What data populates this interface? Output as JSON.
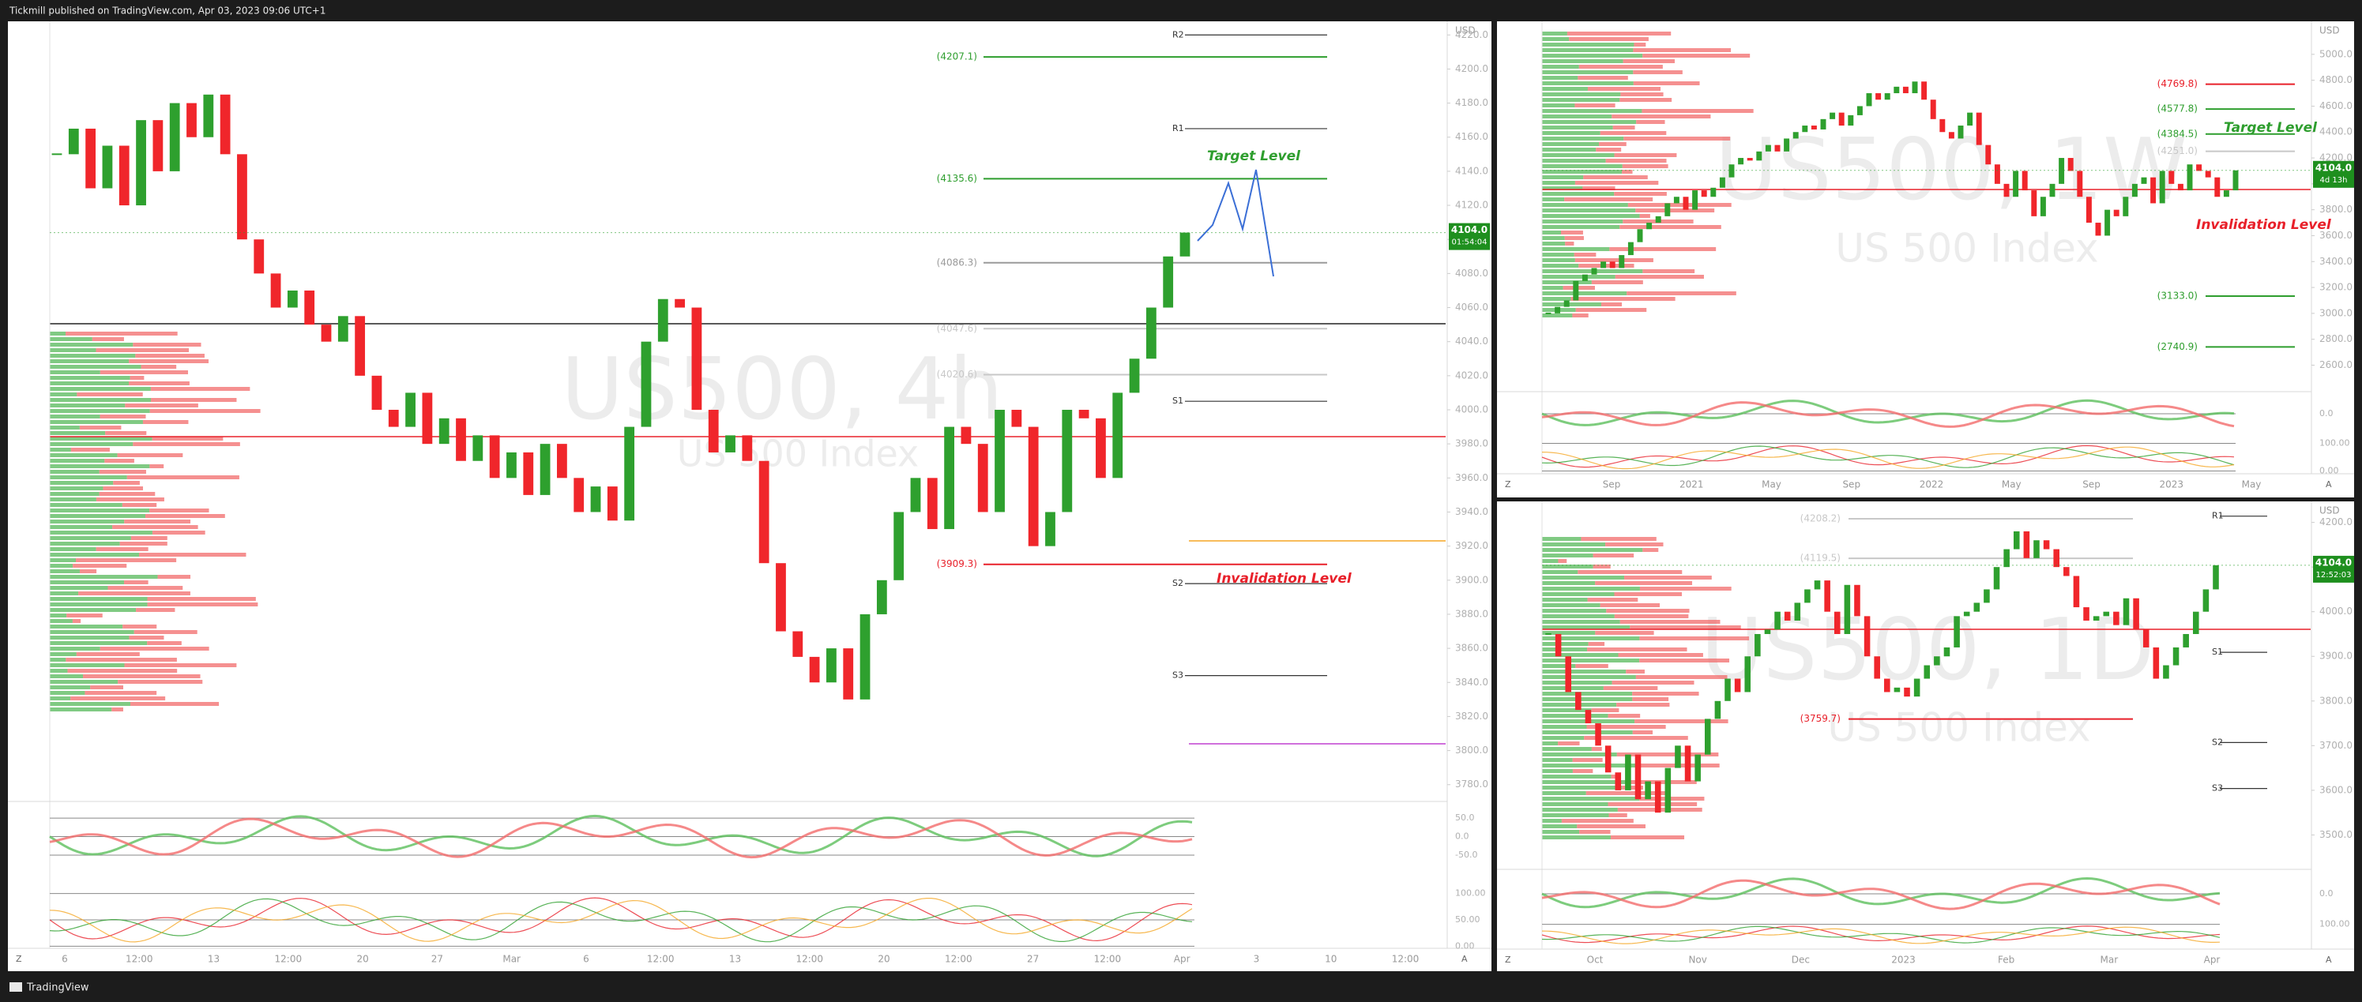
{
  "header": {
    "text": "Tickmill published on TradingView.com, Apr 03, 2023 09:06 UTC+1"
  },
  "footer": {
    "brand": "TradingView"
  },
  "panels": [
    {
      "watermark": "US500, 4h",
      "subtitle": "US 500 Index",
      "currency": "USD",
      "up_color": "#2ea02e",
      "down_color": "#f0262b",
      "ylim": [
        3772,
        4228
      ],
      "yticks": [
        {
          "value": 3780,
          "label": "3780.0"
        },
        {
          "value": 3800,
          "label": "3800.0"
        },
        {
          "value": 3820,
          "label": "3820.0"
        },
        {
          "value": 3840,
          "label": "3840.0"
        },
        {
          "value": 3860,
          "label": "3860.0"
        },
        {
          "value": 3880,
          "label": "3880.0"
        },
        {
          "value": 3900,
          "label": "3900.0"
        },
        {
          "value": 3920,
          "label": "3920.0"
        },
        {
          "value": 3940,
          "label": "3940.0"
        },
        {
          "value": 3960,
          "label": "3960.0"
        },
        {
          "value": 3980,
          "label": "3980.0"
        },
        {
          "value": 4000,
          "label": "4000.0"
        },
        {
          "value": 4020,
          "label": "4020.0"
        },
        {
          "value": 4040,
          "label": "4040.0"
        },
        {
          "value": 4060,
          "label": "4060.0"
        },
        {
          "value": 4080,
          "label": "4080.0"
        },
        {
          "value": 4100,
          "label": "4100.0"
        },
        {
          "value": 4120,
          "label": "4120.0"
        },
        {
          "value": 4140,
          "label": "4140.0"
        },
        {
          "value": 4160,
          "label": "4160.0"
        },
        {
          "value": 4180,
          "label": "4180.0"
        },
        {
          "value": 4200,
          "label": "4200.0"
        },
        {
          "value": 4220,
          "label": "4220.0"
        }
      ],
      "x_labels": [
        "6",
        "12:00",
        "13",
        "12:00",
        "20",
        "27",
        "Mar",
        "6",
        "12:00",
        "13",
        "12:00",
        "20",
        "12:00",
        "27",
        "12:00",
        "Apr",
        "3",
        "10",
        "12:00"
      ],
      "closes": [
        4150,
        4165,
        4130,
        4155,
        4120,
        4170,
        4140,
        4180,
        4160,
        4185,
        4150,
        4100,
        4080,
        4060,
        4070,
        4050,
        4040,
        4055,
        4020,
        4000,
        3990,
        4010,
        3980,
        3995,
        3970,
        3985,
        3960,
        3975,
        3950,
        3980,
        3960,
        3940,
        3955,
        3935,
        3990,
        4040,
        4065,
        4060,
        4000,
        3975,
        3985,
        3970,
        3910,
        3870,
        3855,
        3840,
        3860,
        3830,
        3880,
        3900,
        3940,
        3960,
        3930,
        3990,
        3980,
        3940,
        4000,
        3990,
        3920,
        3940,
        4000,
        3995,
        3960,
        4010,
        4030,
        4060,
        4090,
        4104
      ],
      "last_price": {
        "value": 4104,
        "label": "4104.0"
      },
      "countdown": "01:54:04",
      "fib_levels": [
        {
          "value": 4207.1,
          "label": "(4207.1)",
          "color": "#2e9e2e"
        },
        {
          "value": 4135.6,
          "label": "(4135.6)",
          "color": "#2e9e2e"
        },
        {
          "value": 4086.3,
          "label": "(4086.3)",
          "color": "#9a9a9a"
        },
        {
          "value": 4047.6,
          "label": "(4047.6)",
          "color": "#c8c8c8"
        },
        {
          "value": 4020.6,
          "label": "(4020.6)",
          "color": "#c8c8c8"
        },
        {
          "value": 3909.3,
          "label": "(3909.3)",
          "color": "#e8202a"
        }
      ],
      "pivots": [
        {
          "value": 4220,
          "label": "R2"
        },
        {
          "value": 4165,
          "label": "R1"
        },
        {
          "value": 4005,
          "label": "S1"
        },
        {
          "value": 3898,
          "label": "S2"
        },
        {
          "value": 3844,
          "label": "S3"
        }
      ],
      "annotations": [
        {
          "text": "Target Level",
          "color": "#2e9e2e"
        },
        {
          "text": "Invalidation Level",
          "color": "#e8202a"
        }
      ],
      "osc1": {
        "ylim": [
          -80,
          80
        ],
        "ticks": [
          {
            "value": 50,
            "label": "50.0"
          },
          {
            "value": 0,
            "label": "0.0"
          },
          {
            "value": -50,
            "label": "-50.0"
          }
        ]
      },
      "osc2": {
        "ylim": [
          -10,
          110
        ],
        "ticks": [
          {
            "value": 100,
            "label": "100.00"
          },
          {
            "value": 50,
            "label": "50.00"
          },
          {
            "value": 0,
            "label": "0.00"
          }
        ]
      },
      "buttons": [
        "Z",
        "A"
      ]
    },
    {
      "watermark": "US500, 1W",
      "subtitle": "US 500 Index",
      "currency": "USD",
      "up_color": "#2ea02e",
      "down_color": "#f0262b",
      "ylim": [
        2420,
        5255
      ],
      "yticks": [
        {
          "value": 2600,
          "label": "2600.0"
        },
        {
          "value": 2800,
          "label": "2800.0"
        },
        {
          "value": 3000,
          "label": "3000.0"
        },
        {
          "value": 3200,
          "label": "3200.0"
        },
        {
          "value": 3400,
          "label": "3400.0"
        },
        {
          "value": 3600,
          "label": "3600.0"
        },
        {
          "value": 3800,
          "label": "3800.0"
        },
        {
          "value": 4000,
          "label": "4000.0"
        },
        {
          "value": 4200,
          "label": "4200.0"
        },
        {
          "value": 4400,
          "label": "4400.0"
        },
        {
          "value": 4600,
          "label": "4600.0"
        },
        {
          "value": 4800,
          "label": "4800.0"
        },
        {
          "value": 5000,
          "label": "5000.0"
        }
      ],
      "x_labels": [
        "Sep",
        "2021",
        "May",
        "Sep",
        "2022",
        "May",
        "Sep",
        "2023",
        "May"
      ],
      "closes": [
        3000,
        3050,
        3100,
        3250,
        3300,
        3350,
        3400,
        3350,
        3450,
        3550,
        3650,
        3700,
        3750,
        3850,
        3900,
        3800,
        3950,
        3900,
        3970,
        4050,
        4150,
        4200,
        4180,
        4250,
        4300,
        4250,
        4350,
        4400,
        4450,
        4420,
        4500,
        4550,
        4450,
        4530,
        4600,
        4700,
        4650,
        4700,
        4750,
        4700,
        4790,
        4650,
        4500,
        4400,
        4350,
        4450,
        4550,
        4300,
        4150,
        4000,
        3900,
        4100,
        3950,
        3750,
        3900,
        4000,
        4200,
        4100,
        3900,
        3700,
        3600,
        3800,
        3750,
        3900,
        4000,
        4050,
        3850,
        4100,
        4000,
        3950,
        4150,
        4100,
        4050,
        3900,
        3950,
        4104
      ],
      "last_price": {
        "value": 4104,
        "label": "4104.0"
      },
      "countdown": "4d 13h",
      "fib_levels": [
        {
          "value": 4769.8,
          "label": "(4769.8)",
          "color": "#e8202a"
        },
        {
          "value": 4577.8,
          "label": "(4577.8)",
          "color": "#2e9e2e"
        },
        {
          "value": 4384.5,
          "label": "(4384.5)",
          "color": "#2e9e2e"
        },
        {
          "value": 4251.0,
          "label": "(4251.0)",
          "color": "#c8c8c8"
        },
        {
          "value": 3133.0,
          "label": "(3133.0)",
          "color": "#2e9e2e"
        },
        {
          "value": 2740.9,
          "label": "(2740.9)",
          "color": "#2e9e2e"
        }
      ],
      "pivots": [],
      "annotations": [
        {
          "text": "Target Level",
          "color": "#2e9e2e"
        },
        {
          "text": "Invalidation Level",
          "color": "#e8202a"
        }
      ],
      "osc1": {
        "ylim": [
          -80,
          80
        ],
        "ticks": [
          {
            "value": 0,
            "label": "0.0"
          }
        ]
      },
      "osc2": {
        "ylim": [
          -10,
          110
        ],
        "ticks": [
          {
            "value": 100,
            "label": "100.00"
          },
          {
            "value": 0,
            "label": "0.00"
          }
        ]
      },
      "buttons": [
        "Z",
        "A"
      ]
    },
    {
      "watermark": "US500, 1D",
      "subtitle": "US 500 Index",
      "currency": "USD",
      "up_color": "#2ea02e",
      "down_color": "#f0262b",
      "ylim": [
        3430,
        4240
      ],
      "yticks": [
        {
          "value": 3500,
          "label": "3500.0"
        },
        {
          "value": 3600,
          "label": "3600.0"
        },
        {
          "value": 3700,
          "label": "3700.0"
        },
        {
          "value": 3800,
          "label": "3800.0"
        },
        {
          "value": 3900,
          "label": "3900.0"
        },
        {
          "value": 4000,
          "label": "4000.0"
        },
        {
          "value": 4100,
          "label": "4100.0"
        },
        {
          "value": 4200,
          "label": "4200.0"
        }
      ],
      "x_labels": [
        "Oct",
        "Nov",
        "Dec",
        "2023",
        "Feb",
        "Mar",
        "Apr"
      ],
      "closes": [
        3950,
        3900,
        3820,
        3780,
        3750,
        3700,
        3640,
        3600,
        3680,
        3580,
        3620,
        3550,
        3650,
        3700,
        3620,
        3680,
        3760,
        3800,
        3850,
        3820,
        3900,
        3950,
        3960,
        4000,
        3980,
        4020,
        4050,
        4070,
        4000,
        3950,
        4060,
        3990,
        3900,
        3850,
        3820,
        3830,
        3810,
        3850,
        3880,
        3900,
        3920,
        3990,
        4000,
        4020,
        4050,
        4100,
        4140,
        4180,
        4120,
        4160,
        4140,
        4100,
        4080,
        4010,
        3980,
        3990,
        4000,
        3970,
        4030,
        3960,
        3920,
        3850,
        3880,
        3920,
        3950,
        4000,
        4050,
        4104
      ],
      "last_price": {
        "value": 4104,
        "label": "4104.0"
      },
      "countdown": "12:52:03",
      "fib_levels": [
        {
          "value": 4208.2,
          "label": "(4208.2)",
          "color": "#c8c8c8"
        },
        {
          "value": 4119.5,
          "label": "(4119.5)",
          "color": "#c8c8c8"
        },
        {
          "value": 3759.7,
          "label": "(3759.7)",
          "color": "#e8202a"
        }
      ],
      "pivots": [
        {
          "value": 4214,
          "label": "R1"
        },
        {
          "value": 3909,
          "label": "S1"
        },
        {
          "value": 3707,
          "label": "S2"
        },
        {
          "value": 3604,
          "label": "S3"
        }
      ],
      "annotations": [],
      "osc1": {
        "ylim": [
          -80,
          80
        ],
        "ticks": [
          {
            "value": 0,
            "label": "0.0"
          }
        ]
      },
      "osc2": {
        "ylim": [
          -10,
          110
        ],
        "ticks": [
          {
            "value": 100,
            "label": "100.00"
          }
        ]
      },
      "buttons": [
        "Z",
        "A"
      ]
    }
  ]
}
